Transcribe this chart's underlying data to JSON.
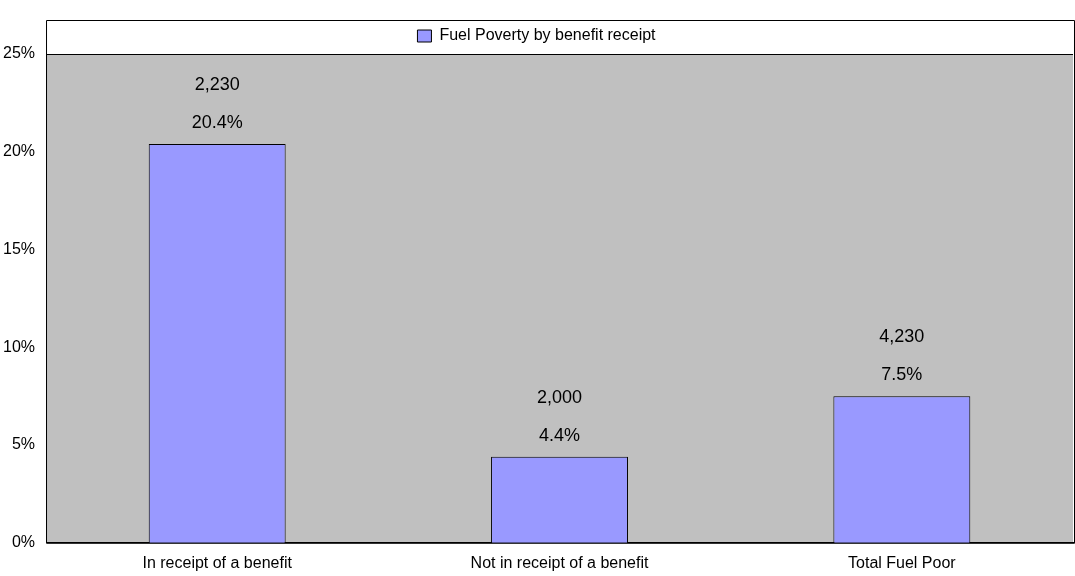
{
  "chart_data": {
    "type": "bar",
    "categories": [
      "In receipt of a benefit",
      "Not in receipt of a benefit",
      "Total Fuel Poor"
    ],
    "series": [
      {
        "name": "Fuel Poverty by benefit receipt",
        "color": "#9999ff",
        "values": [
          20.4,
          4.4,
          7.5
        ],
        "value_labels": [
          "20.4%",
          "4.4%",
          "7.5%"
        ]
      }
    ],
    "ylim": [
      0,
      25
    ],
    "yticks": [
      {
        "value": 0,
        "label": "0%"
      },
      {
        "value": 5,
        "label": "5%"
      },
      {
        "value": 10,
        "label": "10%"
      },
      {
        "value": 15,
        "label": "15%"
      },
      {
        "value": 20,
        "label": "20%"
      },
      {
        "value": 25,
        "label": "25%"
      }
    ],
    "annotations": [
      {
        "text": "2,230",
        "x": "In receipt of a benefit",
        "y": 20.4
      },
      {
        "text": "2,000",
        "x": "Not in receipt of a benefit",
        "y": 4.4
      },
      {
        "text": "4,230",
        "x": "Total Fuel Poor",
        "y": 7.5
      }
    ],
    "grid": false,
    "legend": "top"
  }
}
